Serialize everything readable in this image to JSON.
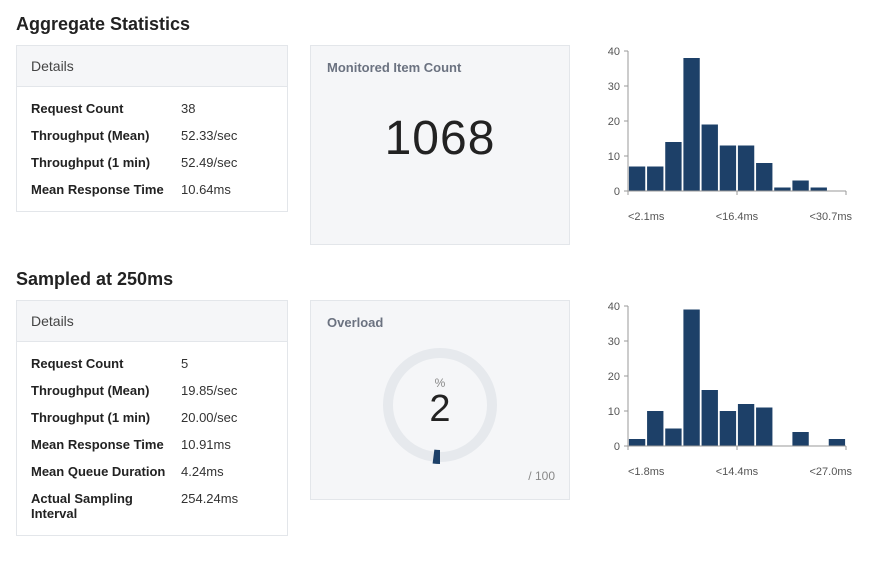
{
  "sections": {
    "aggregate": {
      "title": "Aggregate Statistics",
      "details_header": "Details",
      "rows": [
        {
          "k": "Request Count",
          "v": "38"
        },
        {
          "k": "Throughput (Mean)",
          "v": "52.33/sec"
        },
        {
          "k": "Throughput (1 min)",
          "v": "52.49/sec"
        },
        {
          "k": "Mean Response Time",
          "v": "10.64ms"
        }
      ],
      "metric": {
        "label": "Monitored Item Count",
        "value": "1068"
      },
      "chart": {
        "type": "histogram",
        "bar_color": "#1d4068",
        "axis_color": "#999999",
        "tick_color": "#999999",
        "label_color": "#555555",
        "label_fontsize": 11,
        "background_color": "#ffffff",
        "ylim": [
          0,
          40
        ],
        "ytick_step": 10,
        "bins": 12,
        "values": [
          7,
          7,
          14,
          38,
          19,
          13,
          13,
          8,
          1,
          3,
          1,
          0
        ],
        "x_labels": [
          "<2.1ms",
          "<16.4ms",
          "<30.7ms"
        ]
      }
    },
    "sampled": {
      "title": "Sampled at 250ms",
      "details_header": "Details",
      "rows": [
        {
          "k": "Request Count",
          "v": "5"
        },
        {
          "k": "Throughput (Mean)",
          "v": "19.85/sec"
        },
        {
          "k": "Throughput (1 min)",
          "v": "20.00/sec"
        },
        {
          "k": "Mean Response Time",
          "v": "10.91ms"
        },
        {
          "k": "Mean Queue Duration",
          "v": "4.24ms"
        },
        {
          "k": "Actual Sampling Interval",
          "v": "254.24ms"
        }
      ],
      "gauge": {
        "label": "Overload",
        "value": 2,
        "max": 100,
        "pct_symbol": "%",
        "denom_text": "/ 100",
        "ring_color": "#e6e9ed",
        "fill_color": "#1d4068",
        "ring_width": 10
      },
      "chart": {
        "type": "histogram",
        "bar_color": "#1d4068",
        "axis_color": "#999999",
        "tick_color": "#999999",
        "label_color": "#555555",
        "label_fontsize": 11,
        "background_color": "#ffffff",
        "ylim": [
          0,
          40
        ],
        "ytick_step": 10,
        "bins": 12,
        "values": [
          2,
          10,
          5,
          39,
          16,
          10,
          12,
          11,
          0,
          4,
          0,
          2
        ],
        "x_labels": [
          "<1.8ms",
          "<14.4ms",
          "<27.0ms"
        ]
      }
    }
  }
}
